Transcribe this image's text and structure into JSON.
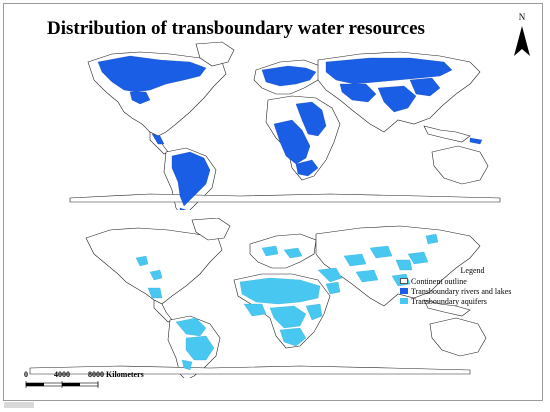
{
  "title": "Distribution of transboundary water resources",
  "north_arrow": {
    "label": "N",
    "icon": "north-arrow-icon"
  },
  "legend": {
    "title": "Legend",
    "items": [
      {
        "label": "Continent outline",
        "color": "#ffffff",
        "border": "#555555"
      },
      {
        "label": "Transboundary rivers and lakes",
        "color": "#1a5ee6"
      },
      {
        "label": "Transboundary aquifers",
        "color": "#48c8f0"
      }
    ]
  },
  "scale_bar": {
    "labels": [
      "0",
      "4000",
      "8000 Kilometers"
    ]
  },
  "colors": {
    "rivers": "#1a5ee6",
    "aquifers": "#48c8f0",
    "outline": "#222222",
    "land": "#ffffff"
  }
}
